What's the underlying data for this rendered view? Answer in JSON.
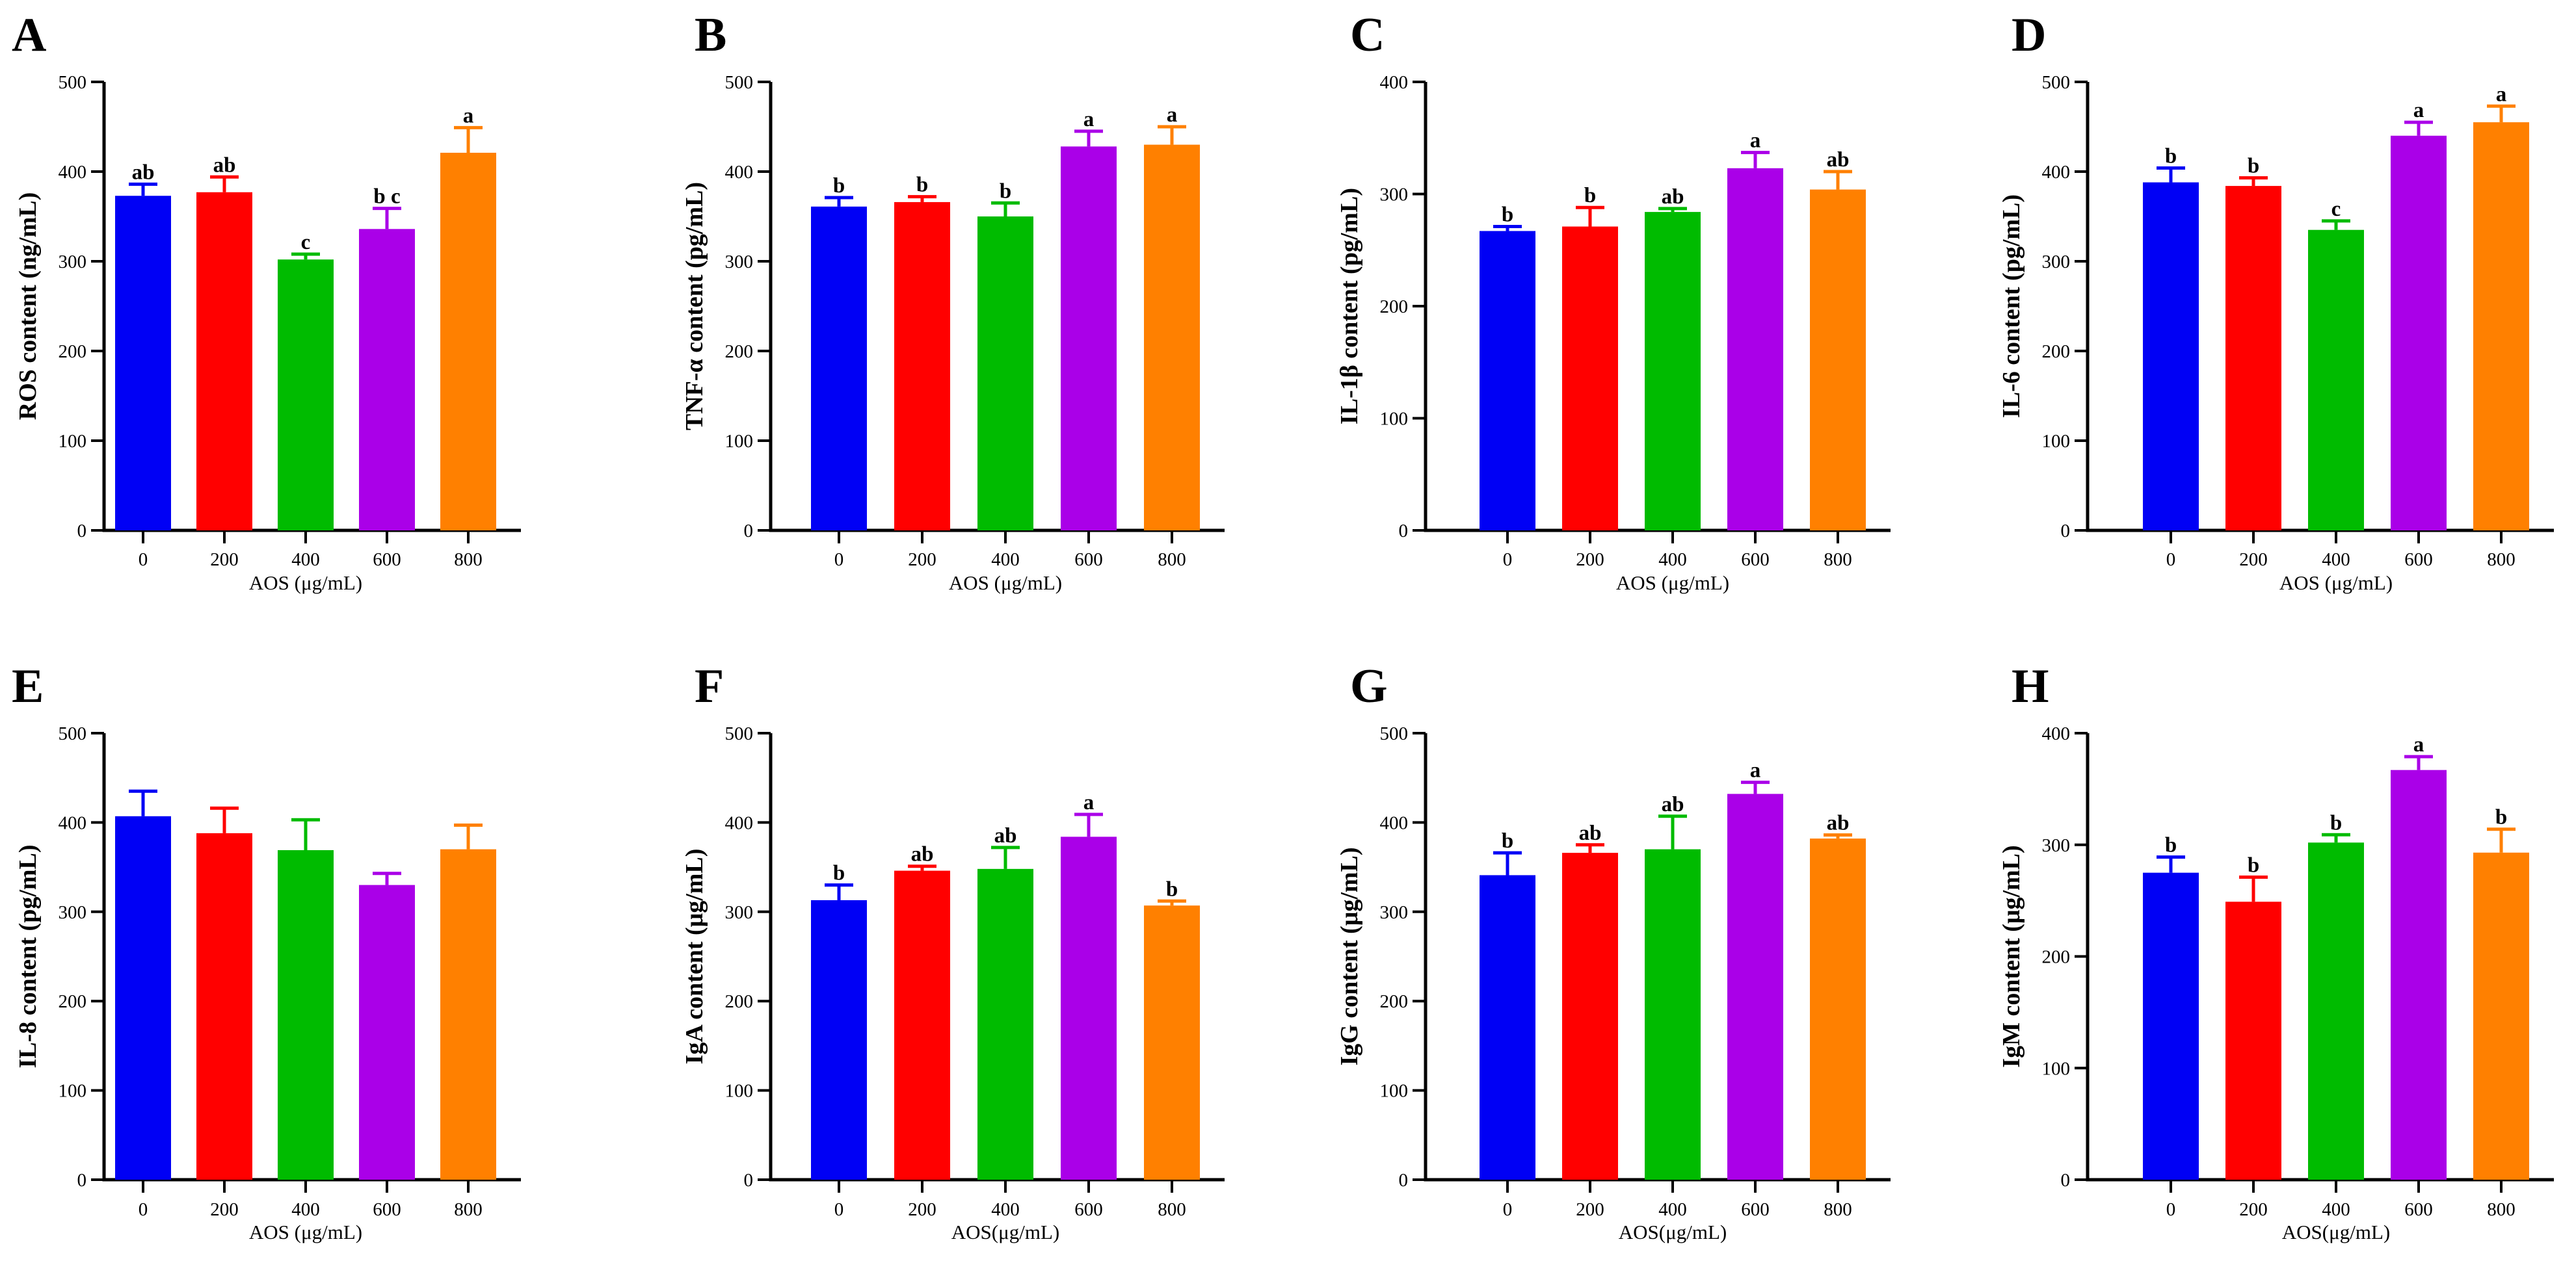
{
  "chart_data": [
    {
      "type": "bar",
      "panel": "A",
      "title": "",
      "ylabel": "ROS content (ng/mL)",
      "xlabel": "AOS (μg/mL)",
      "categories": [
        "0",
        "200",
        "400",
        "600",
        "800"
      ],
      "values": [
        373,
        377,
        302,
        336,
        421
      ],
      "errors": [
        13,
        17,
        6,
        23,
        28
      ],
      "significance": [
        "ab",
        "ab",
        "c",
        "b c",
        "a"
      ],
      "colors": [
        "#0000f5",
        "#ff0000",
        "#00bb00",
        "#aa00e8",
        "#ff8000"
      ],
      "ylim": [
        0,
        500
      ],
      "yticks": [
        0,
        100,
        200,
        300,
        400,
        500
      ]
    },
    {
      "type": "bar",
      "panel": "B",
      "title": "",
      "ylabel": "TNF-α content (pg/mL)",
      "xlabel": "AOS (μg/mL)",
      "categories": [
        "0",
        "200",
        "400",
        "600",
        "800"
      ],
      "values": [
        361,
        366,
        350,
        428,
        430
      ],
      "errors": [
        10,
        6,
        15,
        17,
        20
      ],
      "significance": [
        "b",
        "b",
        "b",
        "a",
        "a"
      ],
      "colors": [
        "#0000f5",
        "#ff0000",
        "#00bb00",
        "#aa00e8",
        "#ff8000"
      ],
      "ylim": [
        0,
        500
      ],
      "yticks": [
        0,
        100,
        200,
        300,
        400,
        500
      ]
    },
    {
      "type": "bar",
      "panel": "C",
      "title": "",
      "ylabel": "IL-1β content (pg/mL)",
      "xlabel": "AOS (μg/mL)",
      "categories": [
        "0",
        "200",
        "400",
        "600",
        "800"
      ],
      "values": [
        267,
        271,
        284,
        323,
        304
      ],
      "errors": [
        4,
        17,
        3,
        14,
        16
      ],
      "significance": [
        "b",
        "b",
        "ab",
        "a",
        "ab"
      ],
      "colors": [
        "#0000f5",
        "#ff0000",
        "#00bb00",
        "#aa00e8",
        "#ff8000"
      ],
      "ylim": [
        0,
        400
      ],
      "yticks": [
        0,
        100,
        200,
        300,
        400
      ]
    },
    {
      "type": "bar",
      "panel": "D",
      "title": "",
      "ylabel": "IL-6 content (pg/mL)",
      "xlabel": "AOS (μg/mL)",
      "categories": [
        "0",
        "200",
        "400",
        "600",
        "800"
      ],
      "values": [
        388,
        384,
        335,
        440,
        455
      ],
      "errors": [
        16,
        9,
        10,
        15,
        18
      ],
      "significance": [
        "b",
        "b",
        "c",
        "a",
        "a"
      ],
      "colors": [
        "#0000f5",
        "#ff0000",
        "#00bb00",
        "#aa00e8",
        "#ff8000"
      ],
      "ylim": [
        0,
        500
      ],
      "yticks": [
        0,
        100,
        200,
        300,
        400,
        500
      ]
    },
    {
      "type": "bar",
      "panel": "E",
      "title": "",
      "ylabel": "IL-8 content (pg/mL)",
      "xlabel": "AOS (μg/mL)",
      "categories": [
        "0",
        "200",
        "400",
        "600",
        "800"
      ],
      "values": [
        407,
        388,
        369,
        330,
        370
      ],
      "errors": [
        28,
        28,
        34,
        13,
        27
      ],
      "significance": [
        "",
        "",
        "",
        "",
        ""
      ],
      "colors": [
        "#0000f5",
        "#ff0000",
        "#00bb00",
        "#aa00e8",
        "#ff8000"
      ],
      "ylim": [
        0,
        500
      ],
      "yticks": [
        0,
        100,
        200,
        300,
        400,
        500
      ]
    },
    {
      "type": "bar",
      "panel": "F",
      "title": "",
      "ylabel": "IgA content (μg/mL)",
      "xlabel": "AOS(μg/mL)",
      "categories": [
        "0",
        "200",
        "400",
        "600",
        "800"
      ],
      "values": [
        313,
        346,
        348,
        384,
        307
      ],
      "errors": [
        17,
        5,
        24,
        25,
        5
      ],
      "significance": [
        "b",
        "ab",
        "ab",
        "a",
        "b"
      ],
      "colors": [
        "#0000f5",
        "#ff0000",
        "#00bb00",
        "#aa00e8",
        "#ff8000"
      ],
      "ylim": [
        0,
        500
      ],
      "yticks": [
        0,
        100,
        200,
        300,
        400,
        500
      ]
    },
    {
      "type": "bar",
      "panel": "G",
      "title": "",
      "ylabel": "IgG content (μg/mL)",
      "xlabel": "AOS(μg/mL)",
      "categories": [
        "0",
        "200",
        "400",
        "600",
        "800"
      ],
      "values": [
        341,
        366,
        370,
        432,
        382
      ],
      "errors": [
        25,
        9,
        37,
        13,
        4
      ],
      "significance": [
        "b",
        "ab",
        "ab",
        "a",
        "ab"
      ],
      "colors": [
        "#0000f5",
        "#ff0000",
        "#00bb00",
        "#aa00e8",
        "#ff8000"
      ],
      "ylim": [
        0,
        500
      ],
      "yticks": [
        0,
        100,
        200,
        300,
        400,
        500
      ]
    },
    {
      "type": "bar",
      "panel": "H",
      "title": "",
      "ylabel": "IgM content (μg/mL)",
      "xlabel": "AOS(μg/mL)",
      "categories": [
        "0",
        "200",
        "400",
        "600",
        "800"
      ],
      "values": [
        275,
        249,
        302,
        367,
        293
      ],
      "errors": [
        14,
        22,
        7,
        12,
        21
      ],
      "significance": [
        "b",
        "b",
        "b",
        "a",
        "b"
      ],
      "colors": [
        "#0000f5",
        "#ff0000",
        "#00bb00",
        "#aa00e8",
        "#ff8000"
      ],
      "ylim": [
        0,
        400
      ],
      "yticks": [
        0,
        100,
        200,
        300,
        400
      ]
    }
  ]
}
